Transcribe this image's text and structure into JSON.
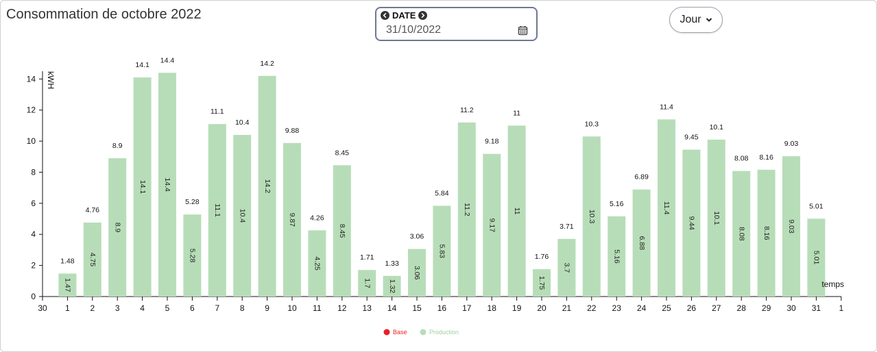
{
  "header": {
    "title": "Consommation de octobre 2022"
  },
  "date_picker": {
    "label": "DATE",
    "value": "31/10/2022"
  },
  "period_select": {
    "value": "Jour"
  },
  "colors": {
    "bar": "#b7ddb8",
    "base_legend": "#ee1c25",
    "production_legend": "#b7ddb8",
    "axis": "#111111"
  },
  "chart_data": {
    "type": "bar",
    "title": "Consommation de octobre 2022",
    "xlabel": "temps",
    "ylabel": "kWH",
    "ylim": [
      0,
      14.5
    ],
    "yticks": [
      0,
      2,
      4,
      6,
      8,
      10,
      12,
      14
    ],
    "x_tick_labels": [
      "30",
      "1",
      "2",
      "3",
      "4",
      "5",
      "6",
      "7",
      "8",
      "9",
      "10",
      "11",
      "12",
      "13",
      "14",
      "15",
      "16",
      "17",
      "18",
      "19",
      "20",
      "21",
      "22",
      "23",
      "24",
      "25",
      "26",
      "27",
      "28",
      "29",
      "30",
      "31",
      "1"
    ],
    "categories": [
      "1",
      "2",
      "3",
      "4",
      "5",
      "6",
      "7",
      "8",
      "9",
      "10",
      "11",
      "12",
      "13",
      "14",
      "15",
      "16",
      "17",
      "18",
      "19",
      "20",
      "21",
      "22",
      "23",
      "24",
      "25",
      "26",
      "27",
      "28",
      "29",
      "30",
      "31"
    ],
    "series": [
      {
        "name": "Production",
        "color": "#b7ddb8",
        "values": [
          1.48,
          4.76,
          8.9,
          14.1,
          14.4,
          5.28,
          11.1,
          10.4,
          14.2,
          9.88,
          4.26,
          8.45,
          1.71,
          1.33,
          3.06,
          5.84,
          11.2,
          9.18,
          11,
          1.76,
          3.71,
          10.3,
          5.16,
          6.89,
          11.4,
          9.45,
          10.1,
          8.08,
          8.16,
          9.03,
          5.01
        ],
        "top_labels": [
          "1.48",
          "4.76",
          "8.9",
          "14.1",
          "14.4",
          "5.28",
          "11.1",
          "10.4",
          "14.2",
          "9.88",
          "4.26",
          "8.45",
          "1.71",
          "1.33",
          "3.06",
          "5.84",
          "11.2",
          "9.18",
          "11",
          "1.76",
          "3.71",
          "10.3",
          "5.16",
          "6.89",
          "11.4",
          "9.45",
          "10.1",
          "8.08",
          "8.16",
          "9.03",
          "5.01"
        ],
        "inner_labels": [
          "1.47",
          "4.75",
          "8.9",
          "14.1",
          "14.4",
          "5.28",
          "11.1",
          "10.4",
          "14.2",
          "9.87",
          "4.25",
          "8.45",
          "1.7",
          "1.32",
          "3.06",
          "5.83",
          "11.2",
          "9.17",
          "11",
          "1.75",
          "3.7",
          "10.3",
          "5.16",
          "6.88",
          "11.4",
          "9.44",
          "10.1",
          "8.08",
          "8.16",
          "9.03",
          "5.01"
        ]
      }
    ],
    "legend": [
      {
        "name": "Base",
        "color": "#ee1c25"
      },
      {
        "name": "Production",
        "color": "#b7ddb8"
      }
    ],
    "legend_position": "bottom-center",
    "grid": false
  }
}
